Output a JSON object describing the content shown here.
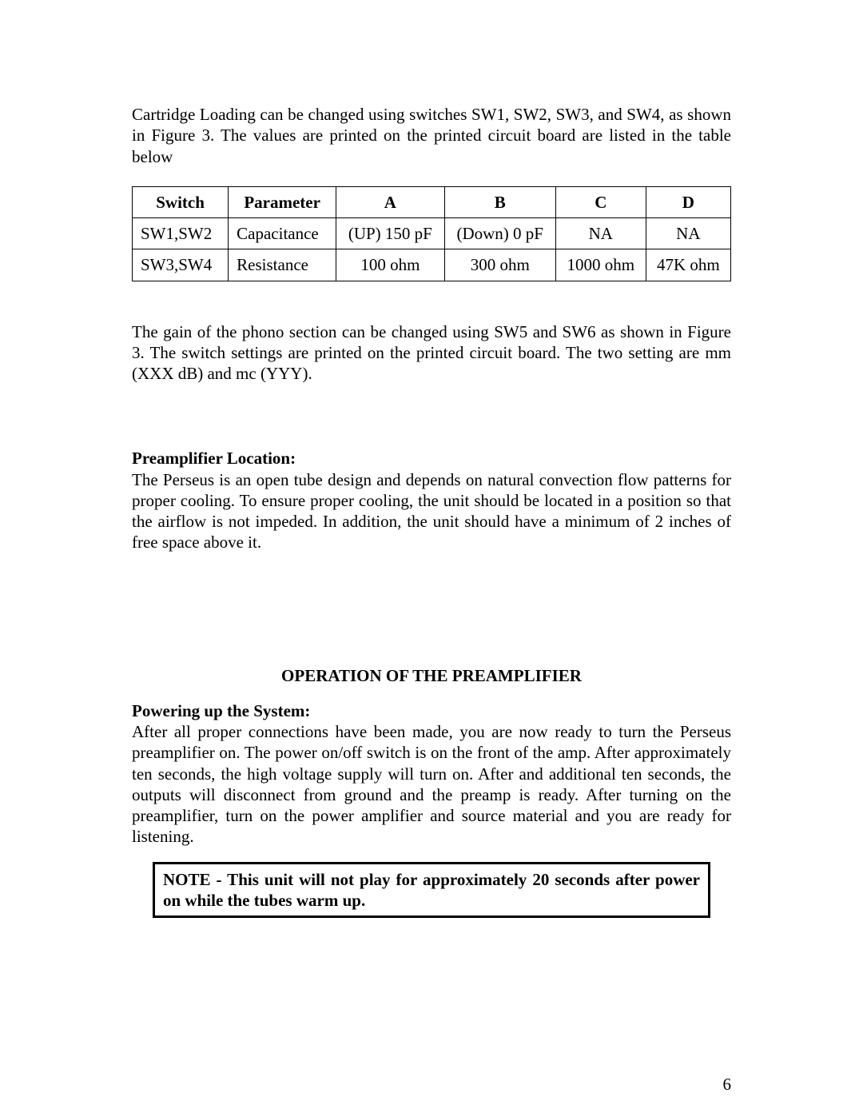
{
  "intro_para": "Cartridge Loading can be changed using switches SW1, SW2, SW3, and SW4, as shown in Figure 3. The values are printed on the printed circuit board are listed in the table below",
  "table": {
    "headers": [
      "Switch",
      "Parameter",
      "A",
      "B",
      "C",
      "D"
    ],
    "rows": [
      [
        "SW1,SW2",
        "Capacitance",
        "(UP) 150 pF",
        "(Down) 0 pF",
        "NA",
        "NA"
      ],
      [
        "SW3,SW4",
        "Resistance",
        "100 ohm",
        "300 ohm",
        "1000 ohm",
        "47K ohm"
      ]
    ],
    "border_color": "#000000",
    "font_size_pt": 16
  },
  "gain_para": "The gain of the phono section can be changed using SW5 and SW6 as shown in Figure 3. The switch settings are printed on the printed circuit board. The two setting are mm (XXX dB) and mc (YYY).",
  "preamp_loc_heading": "Preamplifier Location:",
  "preamp_loc_para": "The Perseus is an open tube design and depends on natural convection flow patterns for proper cooling. To ensure proper cooling, the unit should be located in a position so that the airflow is not impeded. In addition, the unit should have a minimum of 2 inches of free space above it.",
  "operation_title": "OPERATION OF THE PREAMPLIFIER",
  "powering_heading": "Powering up the System:",
  "powering_para": "After all proper connections have been made, you are now ready to turn the Perseus preamplifier on. The power on/off switch is on the front of the amp. After approximately ten seconds, the high voltage supply will turn on. After and additional ten seconds, the outputs will disconnect from ground and the preamp is ready. After turning on the preamplifier, turn on the power amplifier and source material and you are ready for listening.",
  "note_text": "NOTE - This unit will not play for approximately 20 seconds after power on while the tubes warm up.",
  "page_number": "6",
  "colors": {
    "background": "#ffffff",
    "text": "#000000",
    "border": "#000000"
  },
  "typography": {
    "body_font": "Times New Roman",
    "body_size_pt": 16,
    "line_height": 1.25
  }
}
